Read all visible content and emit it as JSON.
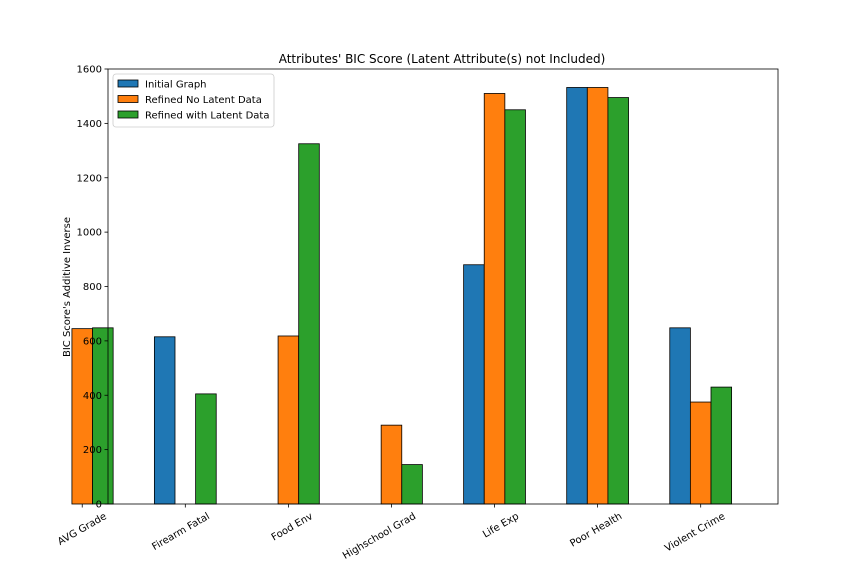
{
  "chart_data": {
    "type": "bar",
    "title": "Attributes' BIC Score (Latent Attribute(s) not Included)",
    "xlabel": "",
    "ylabel": "BIC Score's Additive Inverse",
    "ylim": [
      0,
      1600
    ],
    "yticks": [
      0,
      200,
      400,
      600,
      800,
      1000,
      1200,
      1400,
      1600
    ],
    "categories": [
      "AVG Grade",
      "Firearm Fatal",
      "Food Env",
      "Highschool Grad",
      "Life Exp",
      "Poor Health",
      "Violent Crime"
    ],
    "series": [
      {
        "name": "Initial Graph",
        "color": "#1f77b4",
        "values": [
          0,
          615,
          0,
          0,
          880,
          1532,
          648
        ]
      },
      {
        "name": "Refined No Latent Data",
        "color": "#ff7f0e",
        "values": [
          645,
          0,
          618,
          290,
          1510,
          1532,
          375
        ]
      },
      {
        "name": "Refined with Latent Data",
        "color": "#2ca02c",
        "values": [
          648,
          405,
          1325,
          145,
          1450,
          1495,
          430
        ]
      }
    ],
    "legend_position": "top-left",
    "grid": false
  }
}
